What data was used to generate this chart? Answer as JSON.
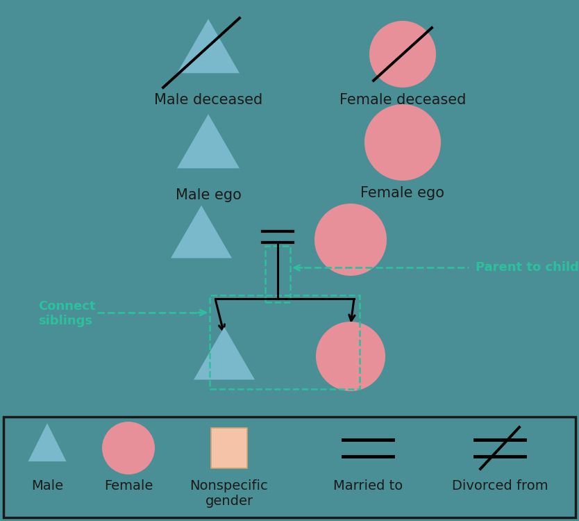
{
  "bg_color": "#4a8f96",
  "triangle_color": "#7ab8cc",
  "circle_color": "#e8909a",
  "orange_sq_color": "#f5c4a8",
  "orange_sq_edge": "#d4a070",
  "text_color": "#1a1a1a",
  "teal_color": "#2dbf9e",
  "legend_bg": "#4a8f96",
  "legend_edge": "#1a1a1a",
  "label_male_deceased": "Male deceased",
  "label_female_deceased": "Female deceased",
  "label_male_ego": "Male ego",
  "label_female_ego": "Female ego",
  "label_parent_to_children": "Parent to children",
  "label_connect_siblings": "Connect\nsiblings",
  "label_male": "Male",
  "label_female": "Female",
  "label_nonspecific": "Nonspecific\ngender",
  "label_married": "Married to",
  "label_divorced": "Divorced from",
  "font_size_main": 15,
  "font_size_legend": 14,
  "font_size_annot": 13
}
